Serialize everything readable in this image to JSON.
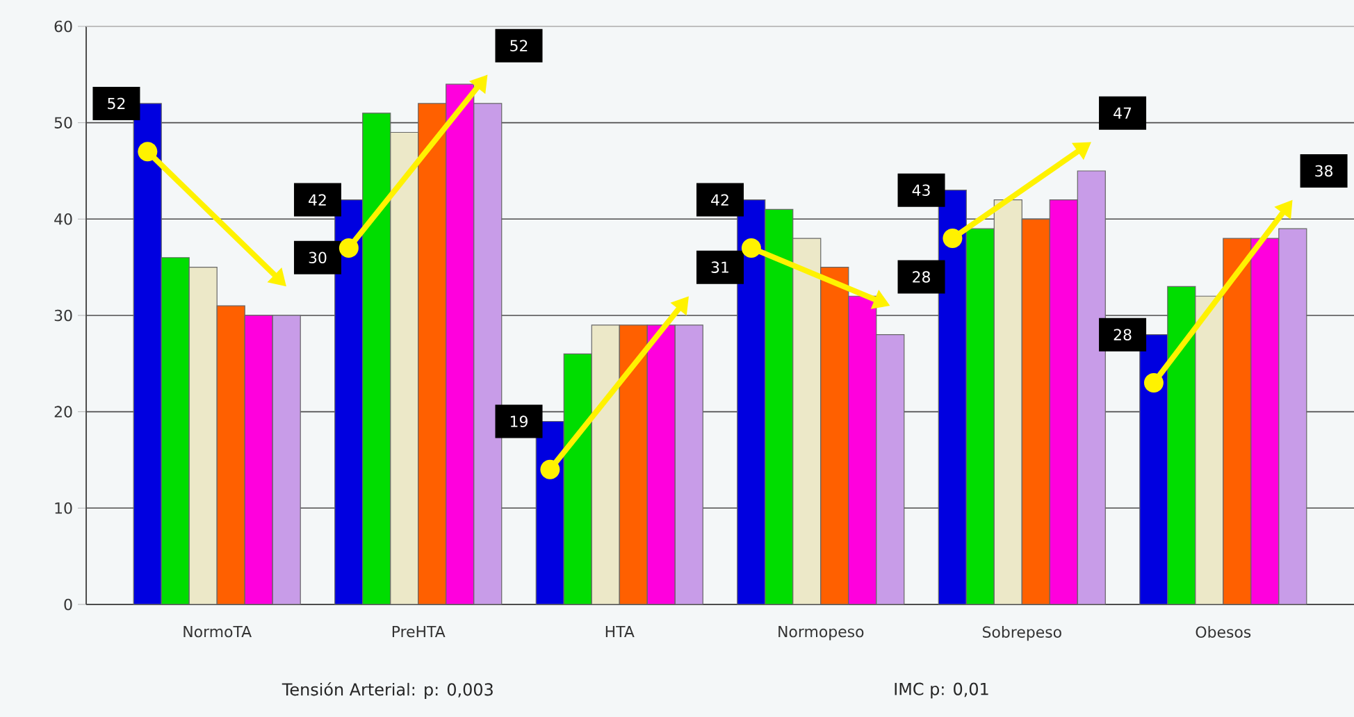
{
  "chart_data": {
    "type": "bar",
    "categories": [
      "NormoTA",
      "PreHTA",
      "HTA",
      "Normopeso",
      "Sobrepeso",
      "Obesos"
    ],
    "series": [
      {
        "color": "#0000e0",
        "values": [
          52,
          42,
          19,
          42,
          43,
          28
        ]
      },
      {
        "color": "#00dd00",
        "values": [
          36,
          51,
          26,
          41,
          39,
          33
        ]
      },
      {
        "color": "#ece8c8",
        "values": [
          35,
          49,
          29,
          38,
          42,
          32
        ]
      },
      {
        "color": "#ff6000",
        "values": [
          31,
          52,
          29,
          35,
          40,
          38
        ]
      },
      {
        "color": "#ff00dd",
        "values": [
          30,
          54,
          29,
          32,
          42,
          38
        ]
      },
      {
        "color": "#c89ce8",
        "values": [
          30,
          52,
          29,
          28,
          45,
          39
        ]
      }
    ],
    "ylim": [
      0,
      60
    ],
    "yticks": [
      0,
      10,
      20,
      30,
      40,
      50,
      60
    ],
    "grid": "y",
    "annotations": [
      "52",
      "30",
      "42",
      "52",
      "19",
      "31",
      "42",
      "28",
      "43",
      "47",
      "28",
      "38",
      "Tensión Arterial: p: 0,003",
      "IMC p: 0,01"
    ]
  }
}
